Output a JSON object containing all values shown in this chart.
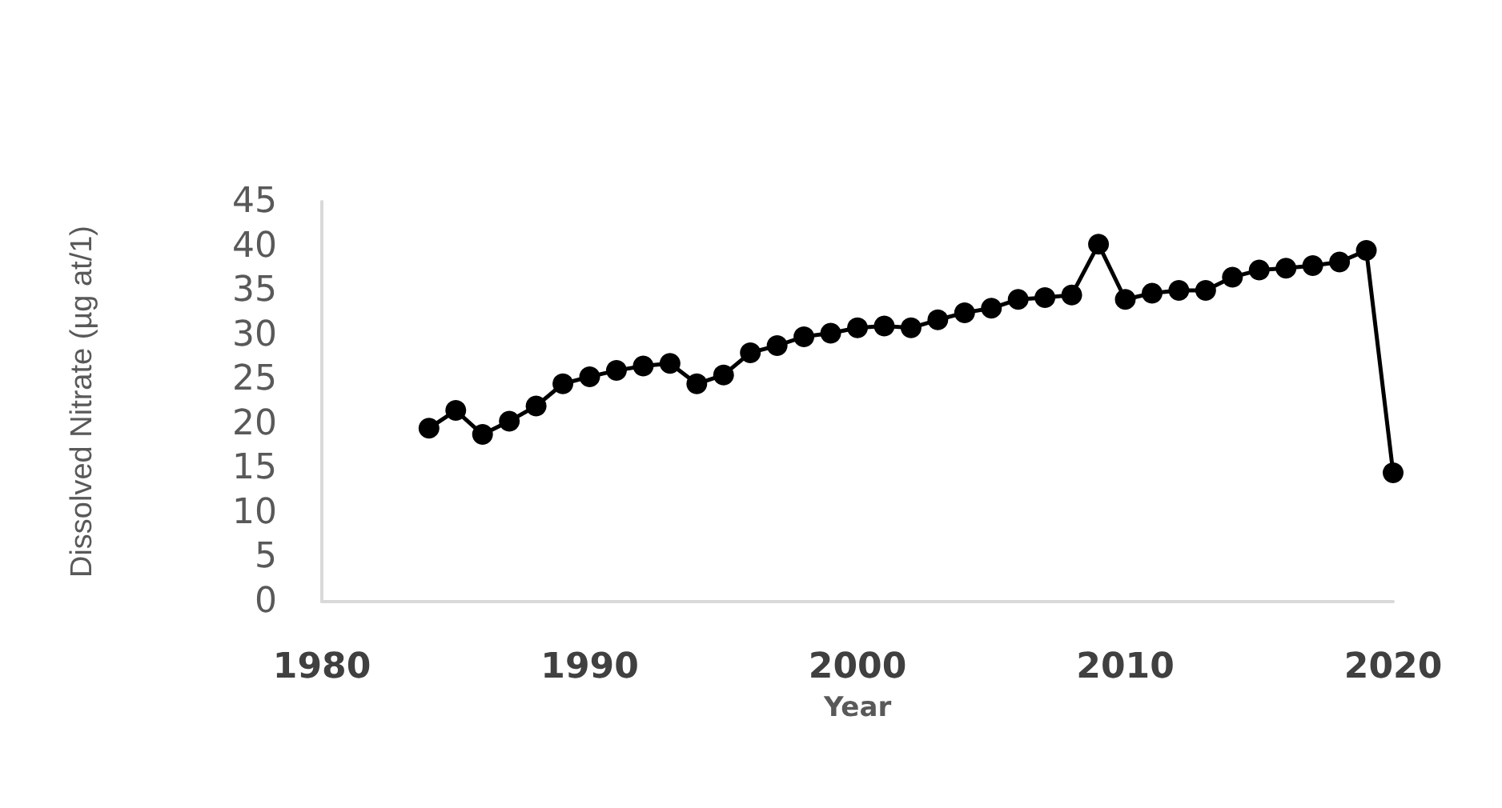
{
  "chart_data": {
    "type": "line",
    "xlabel": "Year",
    "ylabel": "Dissolved Nitrate (µg at/1)",
    "x": [
      1984,
      1985,
      1986,
      1987,
      1988,
      1989,
      1990,
      1991,
      1992,
      1993,
      1994,
      1995,
      1996,
      1997,
      1998,
      1999,
      2000,
      2001,
      2002,
      2003,
      2004,
      2005,
      2006,
      2007,
      2008,
      2009,
      2010,
      2011,
      2012,
      2013,
      2014,
      2015,
      2016,
      2017,
      2018,
      2019,
      2020
    ],
    "series": [
      {
        "color": "#000000",
        "values": [
          19.5,
          21.5,
          18.8,
          20.3,
          22,
          24.5,
          25.3,
          26,
          26.5,
          26.8,
          24.5,
          25.5,
          28,
          28.8,
          29.8,
          30.2,
          30.8,
          31,
          30.8,
          31.7,
          32.5,
          33,
          34,
          34.2,
          34.5,
          40.2,
          34,
          34.7,
          35,
          35,
          36.5,
          37.3,
          37.5,
          37.8,
          38.2,
          39.5,
          14.5
        ]
      }
    ],
    "xlim": [
      1980,
      2020
    ],
    "xticks": [
      1980,
      1990,
      2000,
      2010,
      2020
    ],
    "ylim": [
      0,
      45
    ],
    "yticks": [
      0,
      5,
      10,
      15,
      20,
      25,
      30,
      35,
      40,
      45
    ],
    "grid": false,
    "marker": "circle",
    "line_style": "solid"
  }
}
